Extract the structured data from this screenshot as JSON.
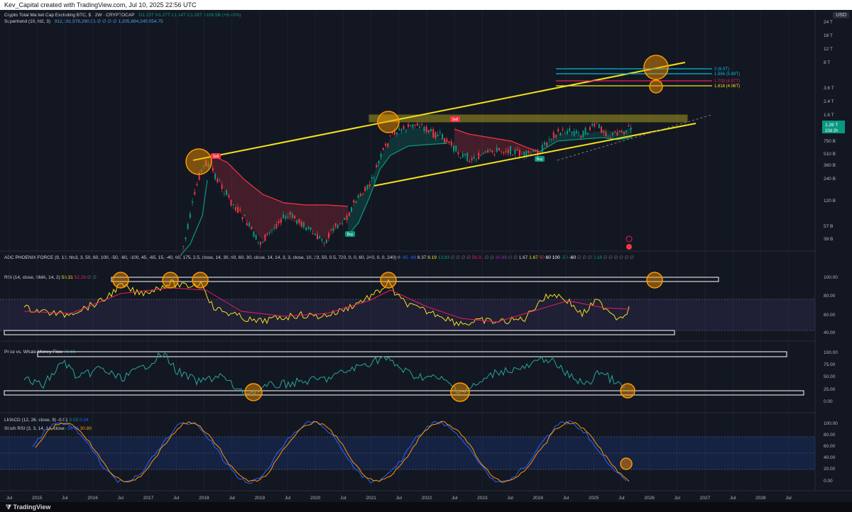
{
  "header": {
    "credit": "Kev_Capital created with TradingView.com, Jul 10, 2025 22:56 UTC"
  },
  "footer": {
    "brand": "TradingView"
  },
  "colors": {
    "background": "#131722",
    "yellow": "#f5e11a",
    "red": "#f23645",
    "green": "#089981",
    "cyan": "#00bcd4",
    "orange": "#ff9800",
    "blue": "#2962ff",
    "magenta": "#e91e63"
  },
  "currency_button": "USD",
  "main_legend": {
    "title": "Crypto Total Market Cap Excluding BTC, $ · 2W · CRYPTOCAP",
    "ohlc": "O1.15T H1.27T L1.14T C1.26T +108.5B (+9.40%)",
    "supertrend": "Supertrend (10, hl2, 3)",
    "supertrend_values": "912,161,578,290.01  ∅ ∅ ∅ ∅  1,205,694,245,054.75"
  },
  "adc_legend": {
    "text": "ADC PHOENIX FORCE (9, 12, hlc3, 3, 50, 60, 100, -50, -60, -100, 45, -65, 15, -40, 60, 175, 2.5, close, 14, 30, 60, 60, 30, close, 14, 14, 3, 3, close, 10, 23, 50, 0.5, 720, 0, 0, 60, 240, 0, 0, 240)",
    "values": [
      {
        "v": "0",
        "c": "#d1d4dc"
      },
      {
        "v": "-95",
        "c": "#2962ff"
      },
      {
        "v": "-99",
        "c": "#2962ff"
      },
      {
        "v": "8.37",
        "c": "#d1d4dc"
      },
      {
        "v": "8.19",
        "c": "#f5e11a"
      },
      {
        "v": "13.83",
        "c": "#089981"
      },
      {
        "v": "∅ ∅ ∅ ∅",
        "c": "#787b86"
      },
      {
        "v": "56.31",
        "c": "#e91e63"
      },
      {
        "v": "∅ ∅",
        "c": "#787b86"
      },
      {
        "v": "30.89",
        "c": "#9c27b0"
      },
      {
        "v": "∅ ∅",
        "c": "#787b86"
      },
      {
        "v": "1.67",
        "c": "#d1d4dc"
      },
      {
        "v": "1.67",
        "c": "#f5e11a"
      },
      {
        "v": "50",
        "c": "#f23645"
      },
      {
        "v": "60",
        "c": "#ffffff"
      },
      {
        "v": "100",
        "c": "#ffffff"
      },
      {
        "v": "-50",
        "c": "#089981"
      },
      {
        "v": "-60",
        "c": "#ffffff"
      },
      {
        "v": "∅ ∅ ∅",
        "c": "#787b86"
      },
      {
        "v": "0.18",
        "c": "#089981"
      },
      {
        "v": "∅ ∅ ∅ ∅ ∅ ∅",
        "c": "#787b86"
      }
    ]
  },
  "rsi_legend": {
    "label": "RSI (14, close, SMA, 14, 2)",
    "v1": "56.31",
    "v2": "52.28",
    "na": "∅ ∅"
  },
  "whale_legend": {
    "label": "Price vs. Whale Money Flow",
    "value": "29.65"
  },
  "lmacd_legend": {
    "label": "LMACD (12, 26, close, 9)",
    "v1": "-0.01",
    "v2": "0.03",
    "v3": "0.04"
  },
  "stoch_legend": {
    "label": "Stoch RSI (3, 3, 14, 14, close)",
    "v1": "39.10",
    "v2": "30.89"
  },
  "price_axis_labels": [
    "24 T",
    "18 T",
    "12 T",
    "8 T",
    "3.6 T",
    "2.4 T",
    "1.6 T",
    "750 B",
    "510 B",
    "360 B",
    "240 B",
    "120 B",
    "57 B",
    "39 B"
  ],
  "price_badge": {
    "value": "1.26 T",
    "countdown": "10d 2h"
  },
  "fib_levels": [
    {
      "label": "2 (6.9T)",
      "color": "#00bcd4"
    },
    {
      "label": "1.866 (5.89T)",
      "color": "#00bcd4"
    },
    {
      "label": "1.703 (4.57T)",
      "color": "#e91e63"
    },
    {
      "label": "1.618 (4.06T)",
      "color": "#f5e11a"
    }
  ],
  "rsi_axis_labels": [
    "100.00",
    "80.00",
    "60.00",
    "40.00"
  ],
  "whale_axis_labels": [
    "100.00",
    "75.00",
    "50.00",
    "25.00",
    "0.00"
  ],
  "stoch_axis_labels": [
    "100.00",
    "80.00",
    "60.00",
    "40.00",
    "20.00",
    "0.00"
  ],
  "time_axis_labels": [
    "Jul",
    "2015",
    "Jul",
    "2016",
    "Jul",
    "2017",
    "Jul",
    "2018",
    "Jul",
    "2019",
    "Jul",
    "2020",
    "Jul",
    "2021",
    "Jul",
    "2022",
    "Jul",
    "2023",
    "Jul",
    "2024",
    "Jul",
    "2025",
    "Jul",
    "2026",
    "Jul",
    "2027",
    "Jul",
    "2028",
    "Jul"
  ],
  "signals": {
    "sell": "Sell",
    "buy": "Buy"
  },
  "chart_data": {
    "type": "line",
    "title": "Crypto Total Market Cap Excluding BTC, $ · 2W · CRYPTOCAP",
    "x": [
      "2017-07",
      "2018-01",
      "2018-07",
      "2019-01",
      "2019-07",
      "2020-01",
      "2020-07",
      "2021-01",
      "2021-05",
      "2021-11",
      "2022-06",
      "2022-11",
      "2023-06",
      "2024-03",
      "2024-08",
      "2024-12",
      "2025-04",
      "2025-07"
    ],
    "series": [
      {
        "values_T": [
          0.05,
          0.45,
          0.16,
          0.07,
          0.13,
          0.07,
          0.12,
          0.35,
          1.5,
          1.65,
          0.55,
          0.42,
          0.48,
          1.25,
          0.95,
          1.6,
          0.85,
          1.26
        ]
      }
    ],
    "yscale": "log",
    "ylim": [
      "39 B",
      "24 T"
    ],
    "xlim": [
      "2014-07",
      "2028-07"
    ],
    "panels": [
      "price",
      "RSI (14, close, SMA, 14, 2)",
      "Price vs. Whale Money Flow",
      "Stoch RSI (3, 3, 14, 14, close)"
    ]
  }
}
